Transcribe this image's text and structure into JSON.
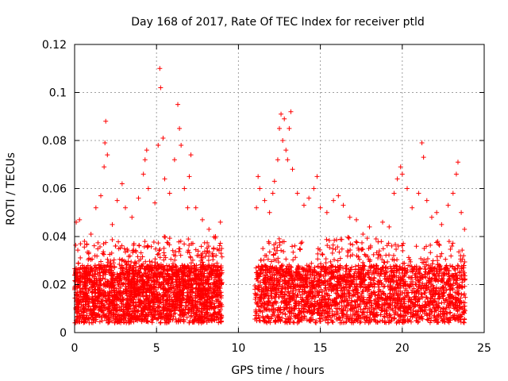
{
  "chart_data": {
    "type": "scatter",
    "title": "Day 168 of 2017, Rate Of TEC Index for receiver ptld",
    "xlabel": "GPS time / hours",
    "ylabel": "ROTI / TECUs",
    "xlim": [
      0,
      25
    ],
    "ylim": [
      0,
      0.12
    ],
    "x_ticks": [
      0,
      5,
      10,
      15,
      20,
      25
    ],
    "x_tick_labels": [
      "0",
      "5",
      "10",
      "15",
      "20",
      "25"
    ],
    "y_ticks": [
      0,
      0.02,
      0.04,
      0.06,
      0.08,
      0.1,
      0.12
    ],
    "y_tick_labels": [
      "0",
      "0.02",
      "0.04",
      "0.06",
      "0.08",
      "0.1",
      "0.12"
    ],
    "grid": true,
    "marker": "+",
    "color": "#ff0000",
    "data_gap_hours": [
      9.0,
      11.0
    ],
    "series": [
      {
        "name": "ROTI",
        "points": [
          [
            0.1,
            0.046
          ],
          [
            0.3,
            0.047
          ],
          [
            0.6,
            0.038
          ],
          [
            1.0,
            0.041
          ],
          [
            1.3,
            0.052
          ],
          [
            1.6,
            0.057
          ],
          [
            1.8,
            0.069
          ],
          [
            1.85,
            0.079
          ],
          [
            1.9,
            0.088
          ],
          [
            2.0,
            0.074
          ],
          [
            2.3,
            0.045
          ],
          [
            2.6,
            0.055
          ],
          [
            2.9,
            0.062
          ],
          [
            3.1,
            0.052
          ],
          [
            3.5,
            0.048
          ],
          [
            3.9,
            0.056
          ],
          [
            4.2,
            0.066
          ],
          [
            4.3,
            0.072
          ],
          [
            4.4,
            0.076
          ],
          [
            4.5,
            0.06
          ],
          [
            4.9,
            0.054
          ],
          [
            5.1,
            0.078
          ],
          [
            5.2,
            0.11
          ],
          [
            5.25,
            0.102
          ],
          [
            5.4,
            0.081
          ],
          [
            5.5,
            0.064
          ],
          [
            5.8,
            0.058
          ],
          [
            6.1,
            0.072
          ],
          [
            6.3,
            0.095
          ],
          [
            6.4,
            0.085
          ],
          [
            6.5,
            0.078
          ],
          [
            6.7,
            0.06
          ],
          [
            6.9,
            0.052
          ],
          [
            7.0,
            0.065
          ],
          [
            7.1,
            0.074
          ],
          [
            7.4,
            0.052
          ],
          [
            7.8,
            0.047
          ],
          [
            8.2,
            0.043
          ],
          [
            8.6,
            0.04
          ],
          [
            8.9,
            0.046
          ],
          [
            11.1,
            0.052
          ],
          [
            11.2,
            0.065
          ],
          [
            11.3,
            0.06
          ],
          [
            11.6,
            0.055
          ],
          [
            11.9,
            0.05
          ],
          [
            12.1,
            0.058
          ],
          [
            12.2,
            0.063
          ],
          [
            12.4,
            0.072
          ],
          [
            12.5,
            0.085
          ],
          [
            12.6,
            0.091
          ],
          [
            12.7,
            0.08
          ],
          [
            12.8,
            0.089
          ],
          [
            12.9,
            0.076
          ],
          [
            13.0,
            0.072
          ],
          [
            13.1,
            0.085
          ],
          [
            13.2,
            0.092
          ],
          [
            13.3,
            0.068
          ],
          [
            13.6,
            0.058
          ],
          [
            14.0,
            0.053
          ],
          [
            14.3,
            0.056
          ],
          [
            14.6,
            0.06
          ],
          [
            14.8,
            0.065
          ],
          [
            15.0,
            0.052
          ],
          [
            15.4,
            0.05
          ],
          [
            15.8,
            0.055
          ],
          [
            16.1,
            0.057
          ],
          [
            16.4,
            0.053
          ],
          [
            16.8,
            0.048
          ],
          [
            17.2,
            0.047
          ],
          [
            17.6,
            0.041
          ],
          [
            18.0,
            0.044
          ],
          [
            18.4,
            0.039
          ],
          [
            18.8,
            0.046
          ],
          [
            19.2,
            0.044
          ],
          [
            19.5,
            0.058
          ],
          [
            19.7,
            0.064
          ],
          [
            19.9,
            0.069
          ],
          [
            20.0,
            0.066
          ],
          [
            20.3,
            0.06
          ],
          [
            20.6,
            0.052
          ],
          [
            21.0,
            0.058
          ],
          [
            21.2,
            0.079
          ],
          [
            21.3,
            0.073
          ],
          [
            21.5,
            0.055
          ],
          [
            21.8,
            0.048
          ],
          [
            22.1,
            0.05
          ],
          [
            22.4,
            0.045
          ],
          [
            22.8,
            0.053
          ],
          [
            23.1,
            0.058
          ],
          [
            23.3,
            0.066
          ],
          [
            23.4,
            0.071
          ],
          [
            23.6,
            0.05
          ],
          [
            23.8,
            0.043
          ]
        ]
      }
    ]
  }
}
